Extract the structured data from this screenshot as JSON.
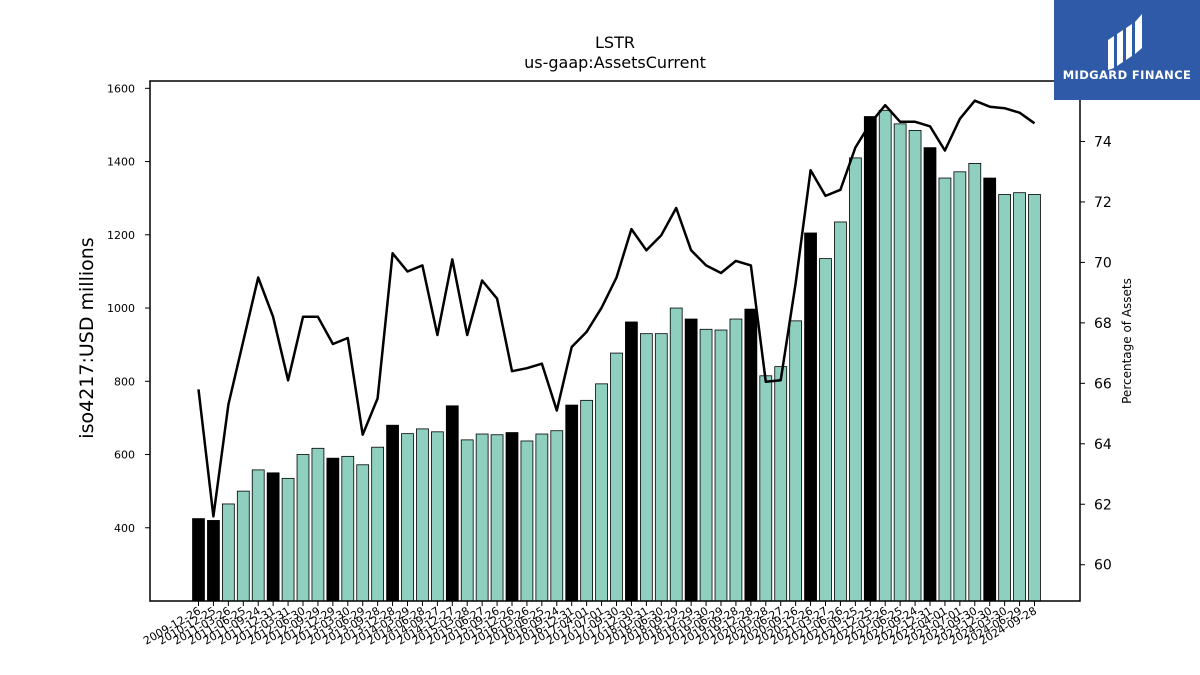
{
  "chart_data": {
    "type": "bar",
    "title": "LSTR",
    "subtitle": "us-gaap:AssetsCurrent",
    "ylabel": "iso4217:USD  millions",
    "y2label": "Percentage of Assets",
    "ylim": [
      200,
      1620
    ],
    "y2lim": [
      58.8,
      76.0
    ],
    "yticks": [
      400,
      600,
      800,
      1000,
      1200,
      1400,
      1600
    ],
    "y2ticks": [
      60,
      62,
      64,
      66,
      68,
      70,
      72,
      74
    ],
    "colors": {
      "annual": "#000000",
      "quarterly": "#8ecfc0",
      "line": "#000000"
    },
    "categories": [
      "2009-12-26",
      "2010-12-25",
      "2011-03-26",
      "2011-06-25",
      "2011-09-24",
      "2011-12-31",
      "2012-03-31",
      "2012-06-30",
      "2012-09-29",
      "2012-12-29",
      "2013-03-30",
      "2013-06-29",
      "2013-09-28",
      "2013-12-28",
      "2014-03-29",
      "2014-06-28",
      "2014-09-27",
      "2014-12-27",
      "2015-03-28",
      "2015-06-27",
      "2015-09-26",
      "2015-12-26",
      "2016-03-26",
      "2016-06-25",
      "2016-09-24",
      "2016-12-31",
      "2017-04-01",
      "2017-07-01",
      "2017-09-30",
      "2017-12-30",
      "2018-03-31",
      "2018-06-30",
      "2018-09-29",
      "2018-12-29",
      "2019-03-30",
      "2019-06-29",
      "2019-09-28",
      "2019-12-28",
      "2020-03-28",
      "2020-06-27",
      "2020-09-26",
      "2020-12-26",
      "2021-03-27",
      "2021-06-26",
      "2021-09-25",
      "2021-12-25",
      "2022-03-26",
      "2022-06-25",
      "2022-09-24",
      "2022-12-31",
      "2023-04-01",
      "2023-07-01",
      "2023-09-30",
      "2023-12-30",
      "2024-03-30",
      "2024-06-29",
      "2024-09-28"
    ],
    "series": [
      {
        "kind": "bar",
        "values": [
          425,
          420,
          465,
          500,
          558,
          550,
          535,
          600,
          617,
          590,
          595,
          572,
          620,
          680,
          657,
          670,
          662,
          733,
          640,
          656,
          654,
          660,
          637,
          656,
          665,
          735,
          748,
          793,
          877,
          962,
          930,
          930,
          1000,
          970,
          942,
          940,
          970,
          997,
          815,
          840,
          965,
          1205,
          1135,
          1235,
          1410,
          1523,
          1540,
          1503,
          1485,
          1438,
          1355,
          1372,
          1395,
          1355,
          1310,
          1315,
          1310
        ],
        "annual": [
          true,
          true,
          false,
          false,
          false,
          true,
          false,
          false,
          false,
          true,
          false,
          false,
          false,
          true,
          false,
          false,
          false,
          true,
          false,
          false,
          false,
          true,
          false,
          false,
          false,
          true,
          false,
          false,
          false,
          true,
          false,
          false,
          false,
          true,
          false,
          false,
          false,
          true,
          false,
          false,
          false,
          true,
          false,
          false,
          false,
          true,
          false,
          false,
          false,
          true,
          false,
          false,
          false,
          true,
          false,
          false,
          false
        ]
      },
      {
        "kind": "line",
        "axis": "right",
        "values": [
          65.8,
          61.6,
          65.3,
          67.4,
          69.5,
          68.2,
          66.1,
          68.2,
          68.2,
          67.3,
          67.5,
          64.3,
          65.5,
          70.3,
          69.7,
          69.9,
          67.6,
          70.1,
          67.6,
          69.4,
          68.8,
          66.4,
          66.5,
          66.65,
          65.1,
          67.2,
          67.7,
          68.5,
          69.5,
          71.1,
          70.4,
          70.9,
          71.8,
          70.4,
          69.9,
          69.65,
          70.05,
          69.9,
          66.05,
          66.1,
          69.3,
          73.05,
          72.2,
          72.4,
          73.8,
          74.6,
          75.2,
          74.65,
          74.65,
          74.5,
          73.7,
          74.75,
          75.35,
          75.15,
          75.1,
          74.95,
          74.6
        ]
      }
    ]
  },
  "logo": {
    "text": "MIDGARD FINANCE"
  }
}
